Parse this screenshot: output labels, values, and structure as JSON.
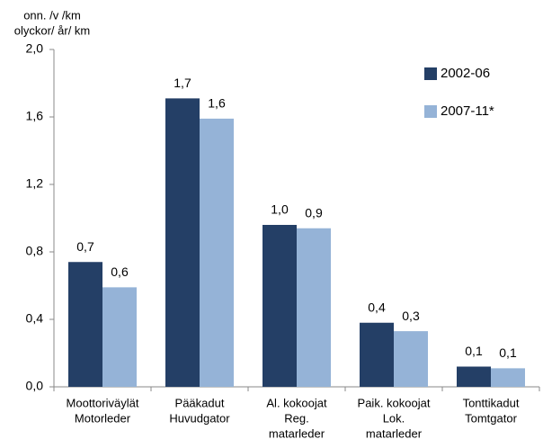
{
  "chart_data": {
    "type": "bar",
    "y_label": [
      "onn. /v /km",
      "olyckor/ år/ km"
    ],
    "categories": [
      [
        "Moottoriväylät",
        "Motorleder"
      ],
      [
        "Pääkadut",
        "Huvudgator"
      ],
      [
        "Al. kokoojat",
        "Reg.",
        "matarleder"
      ],
      [
        "Paik. kokoojat",
        "Lok.",
        "matarleder"
      ],
      [
        "Tonttikadut",
        "Tomtgator"
      ]
    ],
    "series": [
      {
        "name": "2002-06",
        "color": "#243f66",
        "values": [
          0.74,
          1.71,
          0.96,
          0.38,
          0.12
        ],
        "value_labels": [
          "0,7",
          "1,7",
          "1,0",
          "0,4",
          "0,1"
        ]
      },
      {
        "name": "2007-11*",
        "color": "#95b3d7",
        "values": [
          0.59,
          1.59,
          0.94,
          0.33,
          0.11
        ],
        "value_labels": [
          "0,6",
          "1,6",
          "0,9",
          "0,3",
          "0,1"
        ]
      }
    ],
    "ylim": [
      0,
      2
    ],
    "yticks": [
      {
        "value": 0,
        "label": "0,0"
      },
      {
        "value": 0.4,
        "label": "0,4"
      },
      {
        "value": 0.8,
        "label": "0,8"
      },
      {
        "value": 1.2,
        "label": "1,2"
      },
      {
        "value": 1.6,
        "label": "1,6"
      },
      {
        "value": 2,
        "label": "2,0"
      }
    ],
    "legend": "top-right",
    "grid": false
  }
}
